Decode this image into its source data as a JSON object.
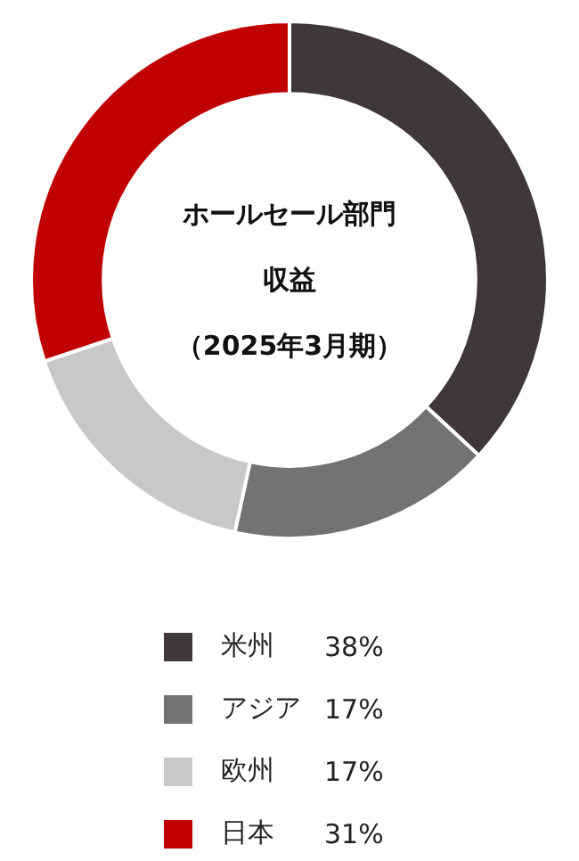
{
  "chart_data": {
    "type": "donut",
    "title": "ホールセール部門収益",
    "subtitle": "（2025年3月期）",
    "categories": [
      "米州",
      "アジア",
      "欧州",
      "日本"
    ],
    "values": [
      38,
      17,
      17,
      31
    ],
    "value_labels": [
      "38%",
      "17%",
      "17%",
      "31%"
    ],
    "colors": [
      "#403838",
      "#737373",
      "#c8c8c8",
      "#c00000"
    ],
    "legend": "bottom"
  }
}
